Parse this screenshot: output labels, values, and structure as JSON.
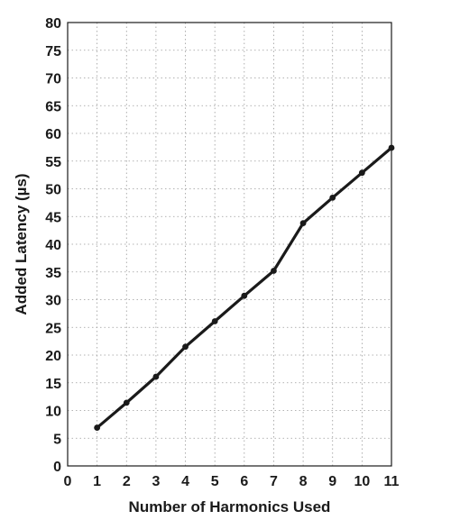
{
  "chart_data": {
    "type": "line",
    "title": "",
    "xlabel": "Number of Harmonics Used",
    "ylabel": "Added Latency (µs)",
    "xlim": [
      0,
      11
    ],
    "ylim": [
      0,
      80
    ],
    "xticks": [
      "0",
      "1",
      "2",
      "3",
      "4",
      "5",
      "6",
      "7",
      "8",
      "9",
      "10",
      "11"
    ],
    "yticks": [
      "0",
      "5",
      "10",
      "15",
      "20",
      "25",
      "30",
      "35",
      "40",
      "45",
      "50",
      "55",
      "60",
      "65",
      "70",
      "75",
      "80"
    ],
    "grid": true,
    "series": [
      {
        "x": [
          1,
          2,
          3,
          4,
          5,
          6,
          7,
          8,
          9,
          10,
          11
        ],
        "values": [
          6.9,
          11.4,
          16.1,
          21.5,
          26.1,
          30.7,
          35.2,
          43.8,
          48.4,
          52.9,
          57.4
        ]
      }
    ],
    "colors": {
      "line": "#1a1a1a",
      "grid": "#9a9a9a"
    }
  }
}
